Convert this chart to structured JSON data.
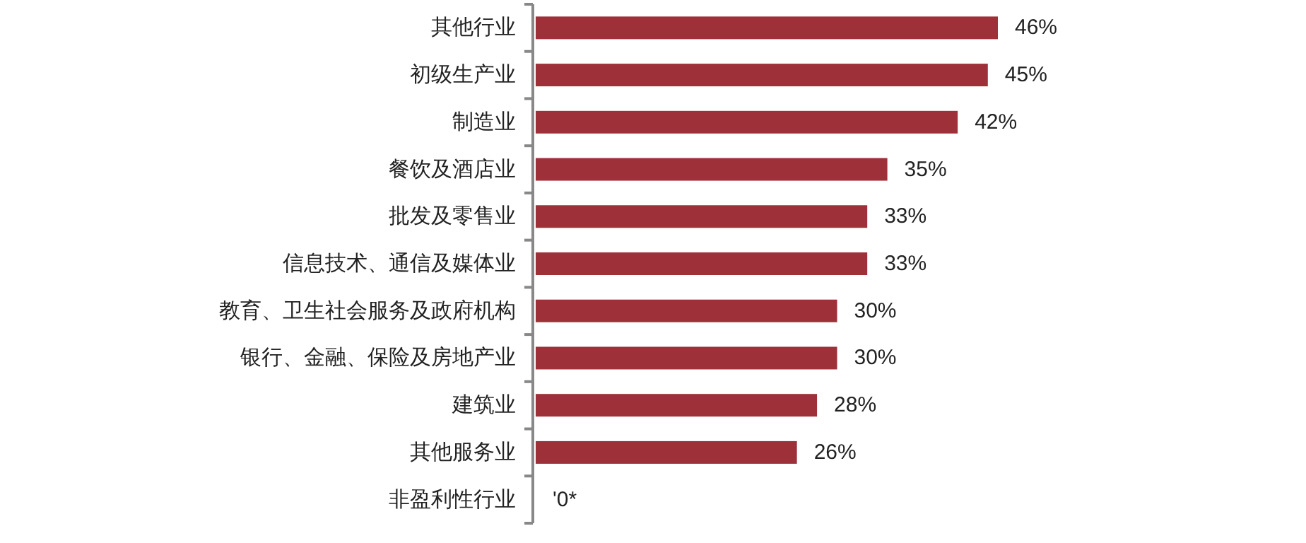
{
  "chart_data": {
    "type": "bar",
    "orientation": "horizontal",
    "categories": [
      "其他行业",
      "初级生产业",
      "制造业",
      "餐饮及酒店业",
      "批发及零售业",
      "信息技术、通信及媒体业",
      "教育、卫生社会服务及政府机构",
      "银行、金融、保险及房地产业",
      "建筑业",
      "其他服务业",
      "非盈利性行业"
    ],
    "values": [
      46,
      45,
      42,
      35,
      33,
      33,
      30,
      30,
      28,
      26,
      0
    ],
    "value_labels": [
      "46%",
      "45%",
      "42%",
      "35%",
      "33%",
      "33%",
      "30%",
      "30%",
      "28%",
      "26%",
      "'0*"
    ],
    "color": "#9e3039"
  }
}
